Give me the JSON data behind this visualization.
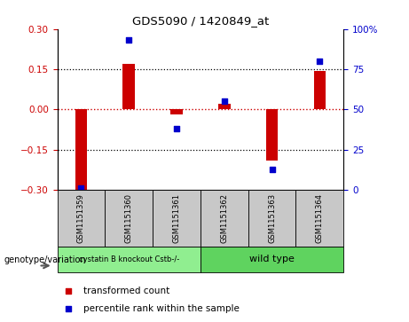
{
  "title": "GDS5090 / 1420849_at",
  "samples": [
    "GSM1151359",
    "GSM1151360",
    "GSM1151361",
    "GSM1151362",
    "GSM1151363",
    "GSM1151364"
  ],
  "transformed_count": [
    -0.3,
    0.17,
    -0.02,
    0.02,
    -0.19,
    0.145
  ],
  "percentile_rank": [
    1,
    93,
    38,
    55,
    13,
    80
  ],
  "ylim_left": [
    -0.3,
    0.3
  ],
  "ylim_right": [
    0,
    100
  ],
  "yticks_left": [
    -0.3,
    -0.15,
    0,
    0.15,
    0.3
  ],
  "yticks_right": [
    0,
    25,
    50,
    75,
    100
  ],
  "hlines_dotted": [
    0.15,
    -0.15
  ],
  "bar_color": "#cc0000",
  "dot_color": "#0000cc",
  "zero_line_color": "#cc0000",
  "dotted_line_color": "#000000",
  "group1_label": "cystatin B knockout Cstb-/-",
  "group2_label": "wild type",
  "group1_color": "#90ee90",
  "group2_color": "#5fd35f",
  "xlabel_genotype": "genotype/variation",
  "legend_bar_label": "transformed count",
  "legend_dot_label": "percentile rank within the sample",
  "bg_color": "#c8c8c8",
  "plot_bg_color": "#ffffff",
  "fig_bg_color": "#ffffff",
  "tick_label_color_left": "#cc0000",
  "tick_label_color_right": "#0000cc",
  "bar_width": 0.25
}
